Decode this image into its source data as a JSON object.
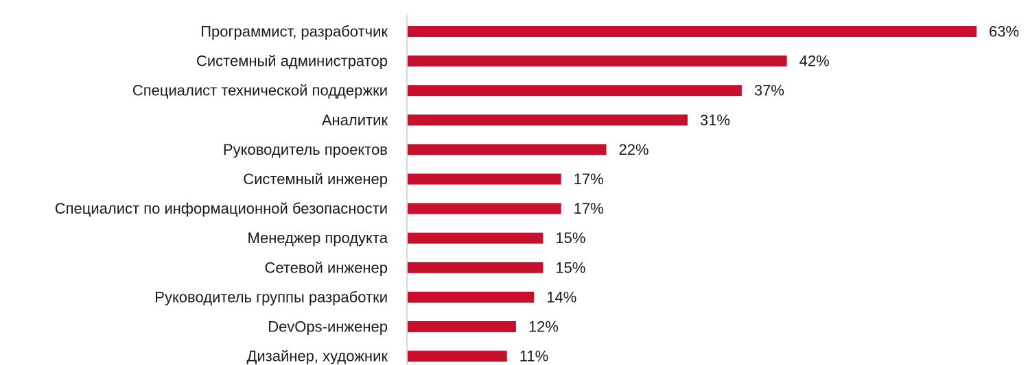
{
  "chart_data": {
    "type": "bar",
    "orientation": "horizontal",
    "categories": [
      "Программист, разработчик",
      "Системный администратор",
      "Специалист технической поддержки",
      "Аналитик",
      "Руководитель проектов",
      "Системный инженер",
      "Специалист по информационной безопасности",
      "Менеджер продукта",
      "Сетевой инженер",
      "Руководитель группы разработки",
      "DevOps-инженер",
      "Дизайнер, художник"
    ],
    "values": [
      63,
      42,
      37,
      31,
      22,
      17,
      17,
      15,
      15,
      14,
      12,
      11
    ],
    "value_labels": [
      "63%",
      "42%",
      "37%",
      "31%",
      "22%",
      "17%",
      "17%",
      "15%",
      "15%",
      "14%",
      "12%",
      "11%"
    ],
    "unit": "%",
    "xlim": [
      0,
      63
    ],
    "grid": false,
    "legend": "none",
    "bar_color": "#c8102e",
    "axis_color": "#d9d9d9"
  }
}
